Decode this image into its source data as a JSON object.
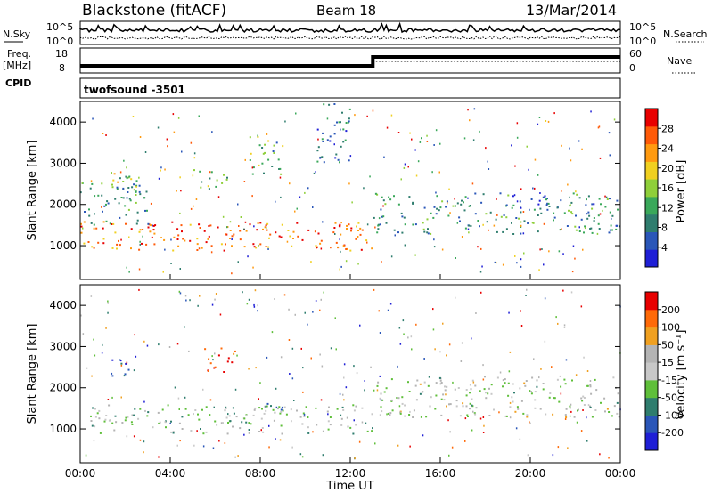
{
  "header": {
    "station": "Blackstone (fitACF)",
    "beam": "Beam 18",
    "date": "13/Mar/2014"
  },
  "top_panels": {
    "nsky_label": "N.Sky",
    "nsearch_label": "N.Search",
    "freq_label": "Freq.",
    "freq_unit": "[MHz]",
    "nave_label": "Nave",
    "cpid_label": "CPID",
    "cpid_value": "twofsound -3501",
    "noise_ticks_left": [
      "10^5",
      "10^0"
    ],
    "noise_ticks_right": [
      "10^5",
      "10^0"
    ],
    "freq_ticks": [
      "18",
      "8"
    ],
    "nave_ticks": [
      "60",
      "0"
    ]
  },
  "colors": {
    "power_scale": [
      "#1f1fd6",
      "#2a56b8",
      "#2f7d6e",
      "#3aa85a",
      "#8fcf3a",
      "#f0d020",
      "#ff9a10",
      "#ff5a08",
      "#e80000"
    ],
    "velocity_scale": [
      "#1f1fd6",
      "#2a56b8",
      "#2f7d6e",
      "#5fbf3a",
      "#c8c8c8",
      "#b4b4b4",
      "#f0a020",
      "#ff6a08",
      "#e80000"
    ]
  },
  "chart_data": [
    {
      "type": "heatmap",
      "panel": "power",
      "xlabel": "",
      "ylabel": "Slant Range [km]",
      "ylim": [
        180,
        4500
      ],
      "y_ticks": [
        "1000",
        "2000",
        "3000",
        "4000"
      ],
      "colorbar_label": "Power [dB]",
      "colorbar_ticks": [
        "4",
        "8",
        "12",
        "16",
        "20",
        "24",
        "28"
      ],
      "colorbar_range": [
        0,
        30
      ],
      "features": [
        {
          "t_start": 0.0,
          "t_end": 13.0,
          "range_start": 900,
          "range_end": 1600,
          "value": 24
        },
        {
          "t_start": 0.0,
          "t_end": 3.0,
          "range_start": 1500,
          "range_end": 2700,
          "value": 10
        },
        {
          "t_start": 1.3,
          "t_end": 2.5,
          "range_start": 2300,
          "range_end": 2800,
          "value": 16
        },
        {
          "t_start": 5.0,
          "t_end": 6.5,
          "range_start": 2400,
          "range_end": 2900,
          "value": 14
        },
        {
          "t_start": 7.5,
          "t_end": 9.0,
          "range_start": 2700,
          "range_end": 3700,
          "value": 12
        },
        {
          "t_start": 10.5,
          "t_end": 12.0,
          "range_start": 3000,
          "range_end": 4500,
          "value": 8
        },
        {
          "t_start": 13.0,
          "t_end": 24.0,
          "range_start": 1300,
          "range_end": 2300,
          "value": 9
        }
      ]
    },
    {
      "type": "heatmap",
      "panel": "velocity",
      "xlabel": "Time UT",
      "ylabel": "Slant Range [km]",
      "ylim": [
        180,
        4500
      ],
      "y_ticks": [
        "1000",
        "2000",
        "3000",
        "4000"
      ],
      "colorbar_label": "Velocity [m s⁻¹]",
      "colorbar_ticks": [
        "200",
        "100",
        "50",
        "15",
        "-15",
        "-50",
        "-100",
        "-200"
      ],
      "colorbar_range": [
        -250,
        250
      ],
      "x_ticks": [
        "00:00",
        "04:00",
        "08:00",
        "12:00",
        "16:00",
        "20:00",
        "00:00"
      ],
      "features": [
        {
          "t_start": 0.0,
          "t_end": 13.0,
          "range_start": 900,
          "range_end": 1600,
          "value": -20
        },
        {
          "t_start": 1.3,
          "t_end": 2.5,
          "range_start": 2300,
          "range_end": 2800,
          "value": -200
        },
        {
          "t_start": 5.5,
          "t_end": 7.0,
          "range_start": 2400,
          "range_end": 3000,
          "value": 200
        },
        {
          "t_start": 7.5,
          "t_end": 9.0,
          "range_start": 1400,
          "range_end": 1700,
          "value": -80
        },
        {
          "t_start": 13.0,
          "t_end": 24.0,
          "range_start": 1300,
          "range_end": 2300,
          "value": 0
        }
      ]
    }
  ]
}
